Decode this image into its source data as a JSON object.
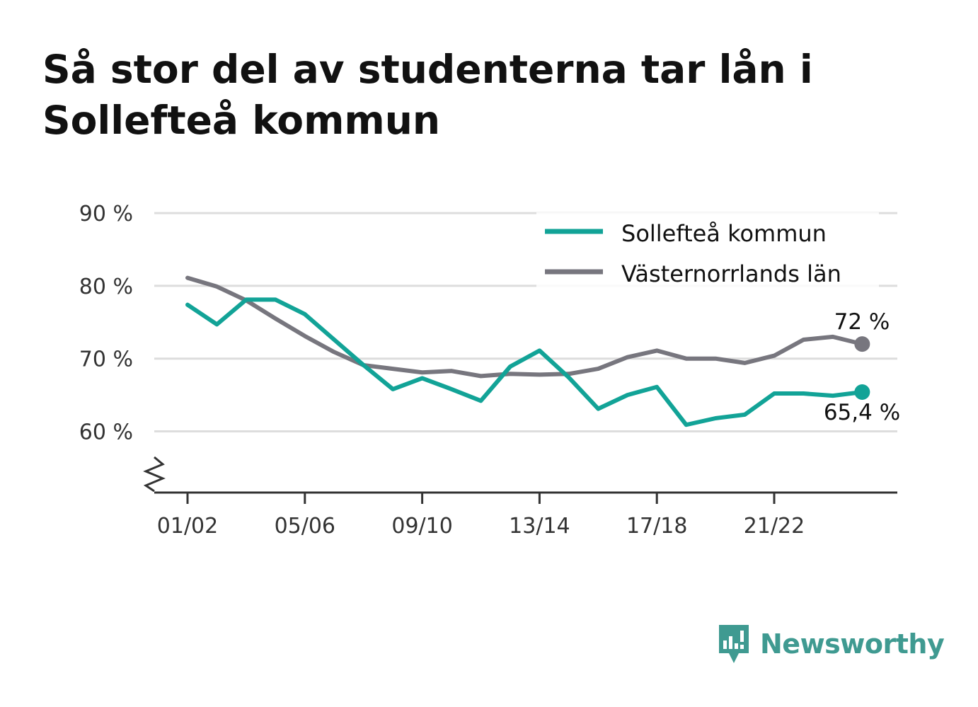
{
  "title": "Så stor del av studenterna tar lån i Sollefteå kommun",
  "logo": {
    "text": "Newsworthy",
    "icon": "newsworthy-bar-chart-icon",
    "color": "#3f9a91"
  },
  "colors": {
    "sollefteå": "#12a397",
    "vasternorrland": "#77767e",
    "grid": "#dddddd",
    "axis": "#333333"
  },
  "legend": {
    "position": "top-right",
    "items": [
      "Sollefteå kommun",
      "Västernorrlands län"
    ]
  },
  "end_labels": {
    "sollefteå": "65,4 %",
    "vasternorrland": "72 %"
  },
  "chart_data": {
    "type": "line",
    "title": "Så stor del av studenterna tar lån i Sollefteå kommun",
    "xlabel": "",
    "ylabel": "",
    "x": [
      "01/02",
      "02/03",
      "03/04",
      "04/05",
      "05/06",
      "06/07",
      "07/08",
      "08/09",
      "09/10",
      "10/11",
      "11/12",
      "12/13",
      "13/14",
      "14/15",
      "15/16",
      "16/17",
      "17/18",
      "18/19",
      "19/20",
      "20/21",
      "21/22",
      "22/23",
      "23/24",
      "24/25"
    ],
    "x_tick_labels": [
      "01/02",
      "05/06",
      "09/10",
      "13/14",
      "17/18",
      "21/22"
    ],
    "y_tick_labels": [
      "60 %",
      "70 %",
      "80 %",
      "90 %"
    ],
    "y_ticks": [
      60,
      70,
      80,
      90
    ],
    "ylim": [
      52,
      90
    ],
    "y_axis_break": true,
    "grid": true,
    "series": [
      {
        "name": "Sollefteå kommun",
        "values": [
          77.4,
          74.7,
          78.1,
          78.1,
          76.1,
          72.6,
          69.1,
          65.8,
          67.3,
          65.8,
          64.2,
          68.9,
          71.1,
          67.4,
          63.1,
          65.0,
          66.1,
          60.9,
          61.8,
          62.3,
          65.2,
          65.2,
          64.9,
          65.4
        ]
      },
      {
        "name": "Västernorrlands län",
        "values": [
          81.1,
          79.9,
          78.0,
          75.5,
          73.1,
          70.9,
          69.1,
          68.6,
          68.1,
          68.3,
          67.6,
          67.9,
          67.8,
          67.9,
          68.6,
          70.2,
          71.1,
          70.0,
          70.0,
          69.4,
          70.4,
          72.6,
          73.0,
          72.0
        ]
      }
    ]
  }
}
